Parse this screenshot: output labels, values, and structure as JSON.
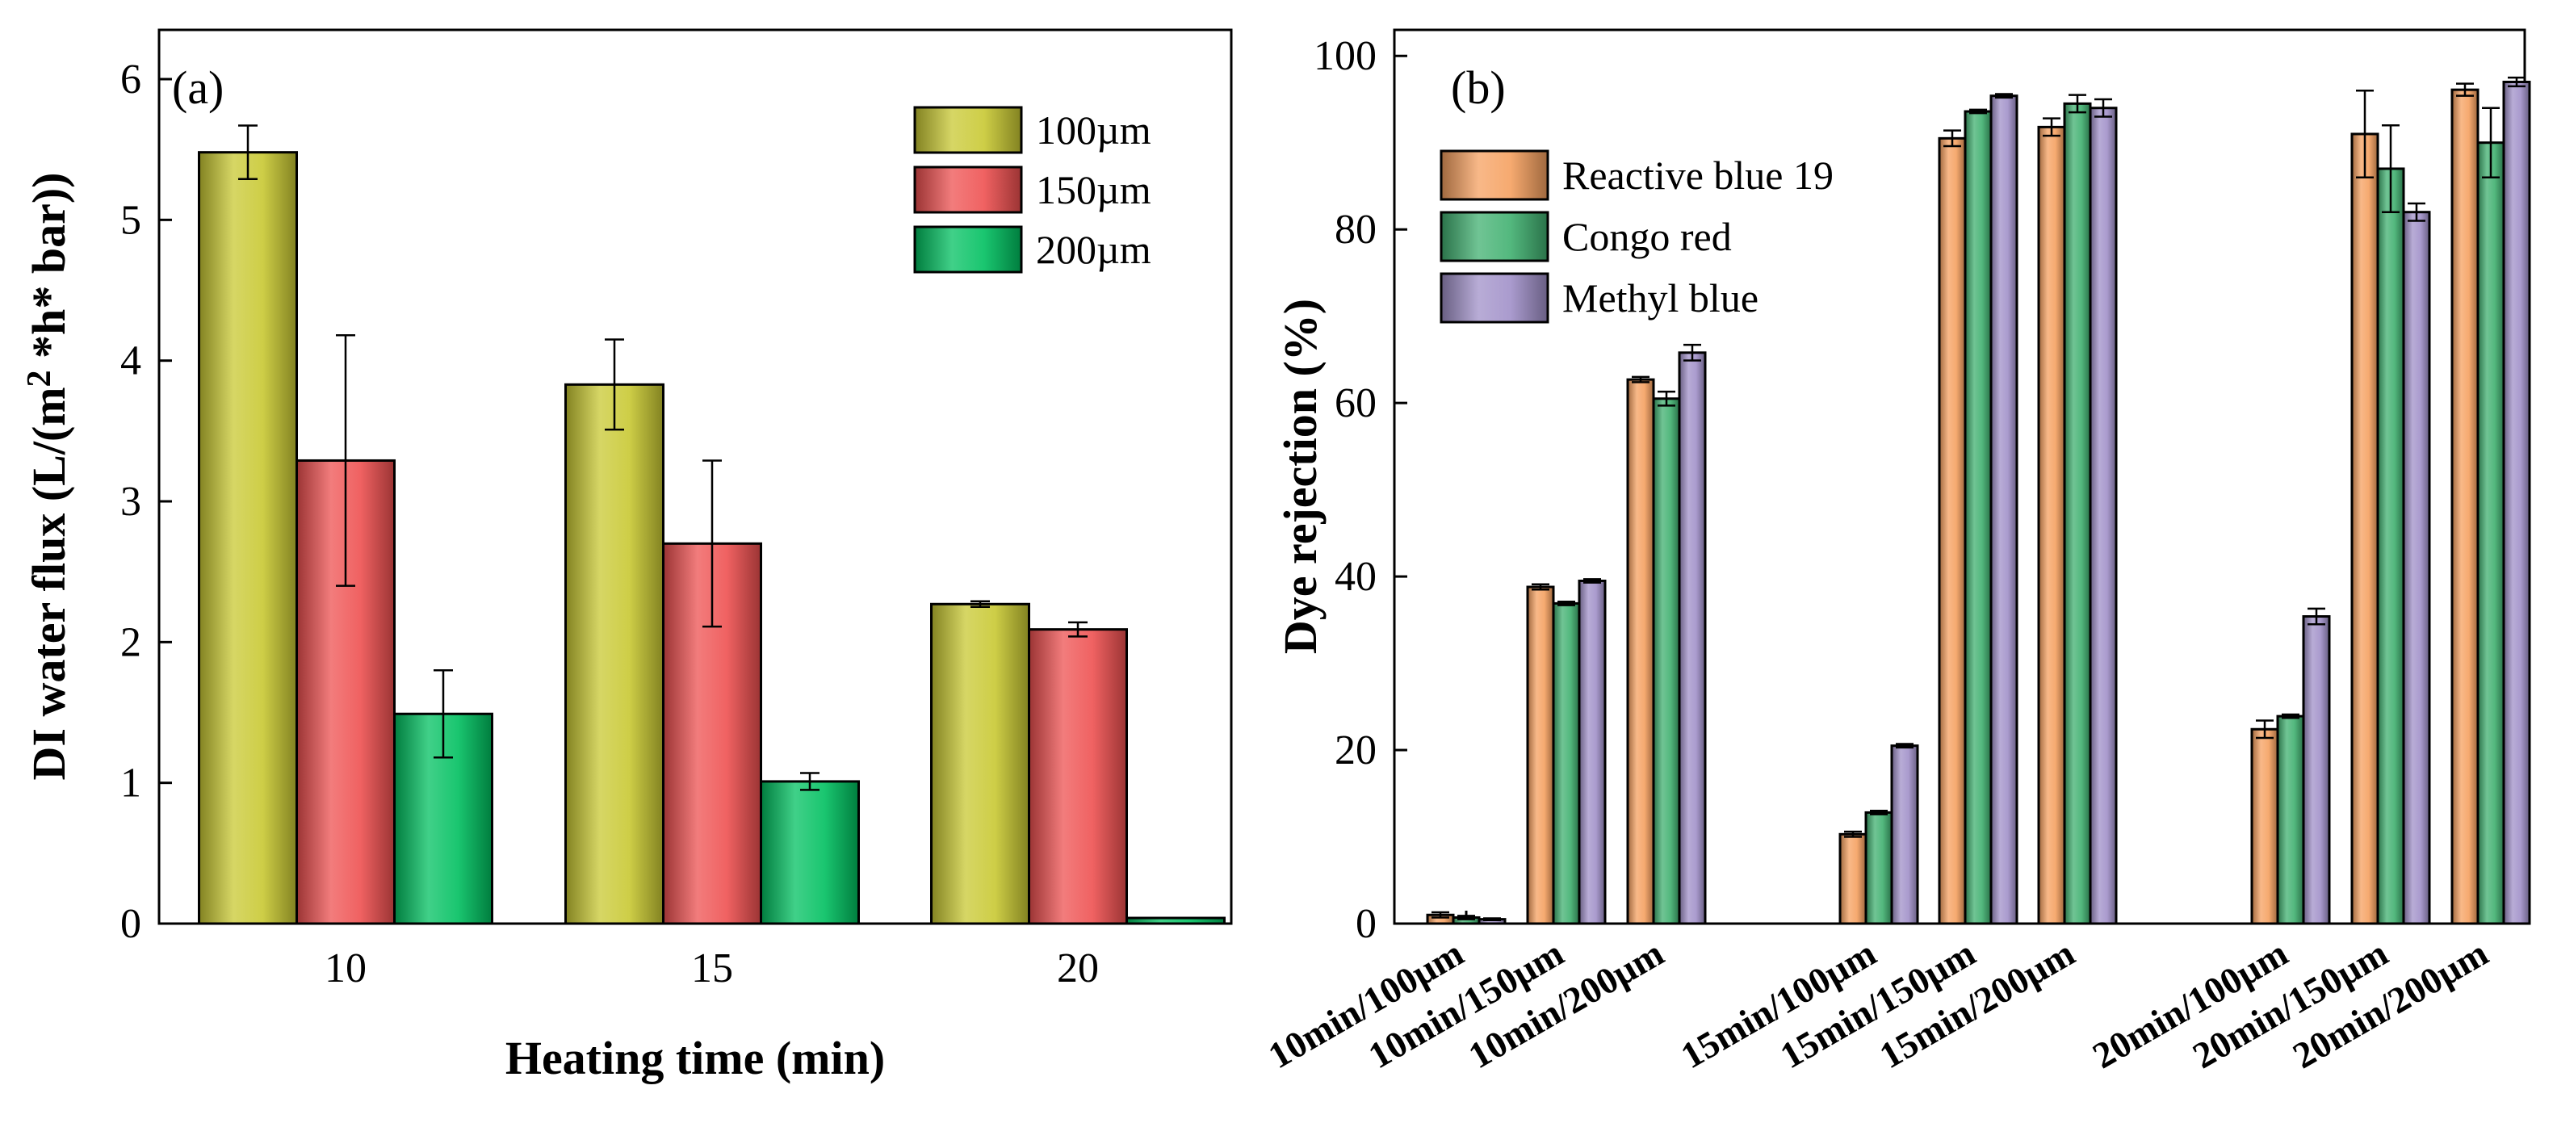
{
  "chart_data": [
    {
      "type": "bar",
      "panel_label": "(a)",
      "xlabel": "Heating time (min)",
      "ylabel_main": "DI water flux (L/(m",
      "ylabel_sup": "2",
      "ylabel_end": " *h* bar))",
      "categories": [
        "10",
        "15",
        "20"
      ],
      "ylim": [
        0,
        6.35
      ],
      "yticks": [
        0,
        1,
        2,
        3,
        4,
        5,
        6
      ],
      "ytick_labels": [
        "0",
        "1",
        "2",
        "3",
        "4",
        "5",
        "6"
      ],
      "legend_position": "top-right",
      "series": [
        {
          "name": "100µm",
          "color": "#c8c832",
          "values": [
            5.48,
            3.83,
            2.27
          ],
          "errors": [
            0.19,
            0.32,
            0.02
          ]
        },
        {
          "name": "150µm",
          "color": "#ee5050",
          "values": [
            3.29,
            2.7,
            2.09
          ],
          "errors": [
            0.89,
            0.59,
            0.05
          ]
        },
        {
          "name": "200µm",
          "color": "#00c060",
          "values": [
            1.49,
            1.01,
            0.04
          ],
          "errors": [
            0.31,
            0.06,
            0.0
          ]
        }
      ]
    },
    {
      "type": "bar",
      "panel_label": "(b)",
      "xlabel": "",
      "ylabel": "Dye rejection (%)",
      "ylim": [
        0,
        103
      ],
      "yticks": [
        0,
        20,
        40,
        60,
        80,
        100
      ],
      "ytick_labels": [
        "0",
        "20",
        "40",
        "60",
        "80",
        "100"
      ],
      "legend_position": "top-left",
      "categories": [
        "10min/100µm",
        "10min/150µm",
        "10min/200µm",
        "15min/100µm",
        "15min/150µm",
        "15min/200µm",
        "20min/100µm",
        "20min/150µm",
        "20min/200µm"
      ],
      "series": [
        {
          "name": "Reactive blue 19",
          "color": "#f5a060",
          "values": [
            1.0,
            38.8,
            62.7,
            10.3,
            90.5,
            91.8,
            22.4,
            91.0,
            96.1
          ],
          "errors": [
            0.3,
            0.3,
            0.3,
            0.3,
            0.9,
            1.0,
            1.0,
            5.0,
            0.7
          ]
        },
        {
          "name": "Congo red",
          "color": "#40b070",
          "values": [
            0.7,
            36.9,
            60.5,
            12.8,
            93.6,
            94.5,
            23.9,
            87.0,
            90.0
          ],
          "errors": [
            0.2,
            0.2,
            0.8,
            0.2,
            0.2,
            1.0,
            0.2,
            5.0,
            4.0
          ]
        },
        {
          "name": "Methyl blue",
          "color": "#a090c8",
          "values": [
            0.5,
            39.5,
            65.8,
            20.5,
            95.4,
            94.0,
            35.4,
            82.0,
            97.0
          ],
          "errors": [
            0.1,
            0.2,
            0.9,
            0.2,
            0.2,
            1.0,
            0.9,
            1.0,
            0.5
          ]
        }
      ]
    }
  ]
}
